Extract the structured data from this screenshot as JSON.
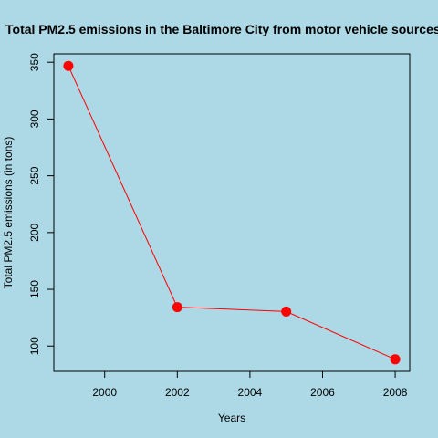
{
  "chart_data": {
    "type": "line",
    "title": "Total PM2.5 emissions in the Baltimore City from motor vehicle sources",
    "xlabel": "Years",
    "ylabel": "Total PM2.5 emissions (in tons)",
    "x": [
      1999,
      2002,
      2005,
      2008
    ],
    "values": [
      346.8,
      134.3,
      130.4,
      88.3
    ],
    "xlim": [
      1998.6,
      2008.4
    ],
    "ylim": [
      77.7,
      357.4
    ],
    "xticks": [
      2000,
      2002,
      2004,
      2006,
      2008
    ],
    "yticks": [
      100,
      150,
      200,
      250,
      300,
      350
    ],
    "grid": false,
    "legend": "none",
    "colors": {
      "line": "#ff0000",
      "points": "#ff0000",
      "background": "#add8e6"
    }
  }
}
